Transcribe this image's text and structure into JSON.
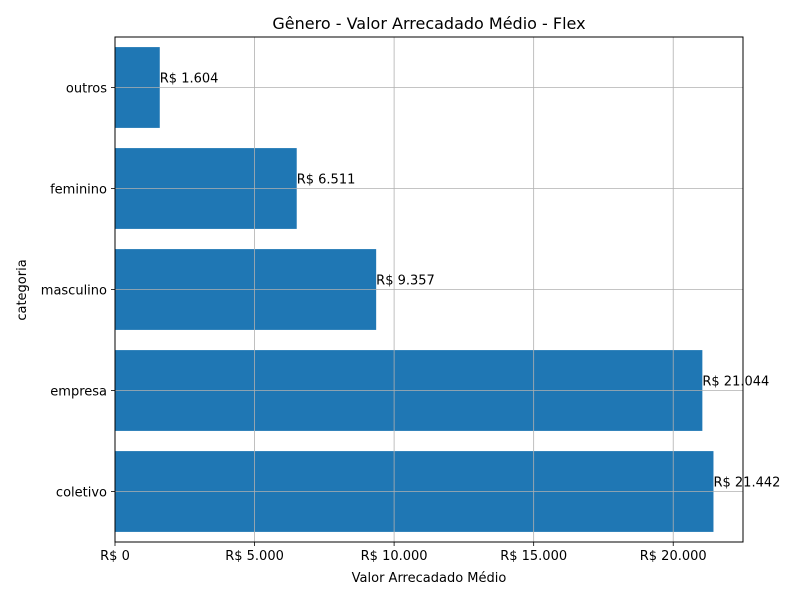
{
  "chart_data": {
    "type": "bar",
    "orientation": "horizontal",
    "title": "Gênero - Valor Arrecadado Médio - Flex",
    "xlabel": "Valor Arrecadado Médio",
    "ylabel": "categoria",
    "categories": [
      "coletivo",
      "empresa",
      "masculino",
      "feminino",
      "outros"
    ],
    "values": [
      21442,
      21044,
      9357,
      6511,
      1604
    ],
    "data_labels": [
      "R$ 21.442",
      "R$ 21.044",
      "R$ 9.357",
      "R$ 6.511",
      "R$ 1.604"
    ],
    "xlim": [
      0,
      22500
    ],
    "xticks": [
      0,
      5000,
      10000,
      15000,
      20000
    ],
    "xtick_labels": [
      "R$ 0",
      "R$ 5.000",
      "R$ 10.000",
      "R$ 15.000",
      "R$ 20.000"
    ],
    "grid": true,
    "bar_color": "#1f77b4"
  }
}
